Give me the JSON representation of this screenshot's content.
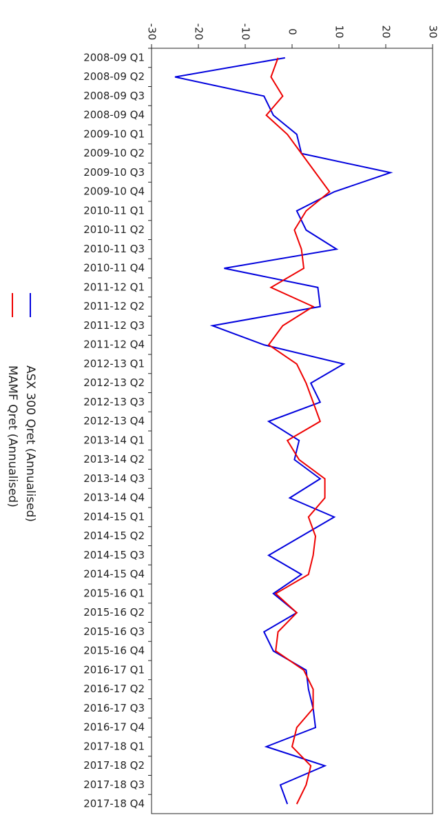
{
  "chart_data": {
    "type": "line",
    "orientation": "horizontal",
    "categories": [
      "2008-09 Q1",
      "2008-09 Q2",
      "2008-09 Q3",
      "2008-09 Q4",
      "2009-10 Q1",
      "2009-10 Q2",
      "2009-10 Q3",
      "2009-10 Q4",
      "2010-11 Q1",
      "2010-11 Q2",
      "2010-11 Q3",
      "2010-11 Q4",
      "2011-12 Q1",
      "2011-12 Q2",
      "2011-12 Q3",
      "2011-12 Q4",
      "2012-13 Q1",
      "2012-13 Q2",
      "2012-13 Q3",
      "2012-13 Q4",
      "2013-14 Q1",
      "2013-14 Q2",
      "2013-14 Q3",
      "2013-14 Q4",
      "2014-15 Q1",
      "2014-15 Q2",
      "2014-15 Q3",
      "2014-15 Q4",
      "2015-16 Q1",
      "2015-16 Q2",
      "2015-16 Q3",
      "2015-16 Q4",
      "2016-17 Q1",
      "2016-17 Q2",
      "2016-17 Q3",
      "2016-17 Q4",
      "2017-18 Q1",
      "2017-18 Q2",
      "2017-18 Q3",
      "2017-18 Q4"
    ],
    "series": [
      {
        "name": "ASX 300 Qret (Annualised)",
        "color": "#0000dd",
        "values": [
          -1.5,
          -25,
          -6,
          -4,
          1,
          2,
          21,
          9,
          1,
          3,
          9.5,
          -14.5,
          5.5,
          6,
          -17,
          -6,
          11,
          4,
          6,
          -5,
          1.5,
          0.5,
          6,
          -0.5,
          9,
          2,
          -5,
          2,
          -4,
          1,
          -6,
          -4,
          3,
          3.5,
          4.5,
          5,
          -5.5,
          7,
          -2.5,
          -1
        ]
      },
      {
        "name": "MAMF Qret (Annualised)",
        "color": "#ee0000",
        "values": [
          -3,
          -4.5,
          -2,
          -5.5,
          -1,
          2,
          5,
          8,
          3,
          0.5,
          2,
          2.5,
          -4.5,
          4.5,
          -2,
          -5,
          1,
          3,
          4.5,
          6,
          -1,
          1.5,
          7,
          7,
          3.5,
          5,
          4.5,
          3.5,
          -3.5,
          1,
          -3,
          -3.5,
          2.5,
          4.5,
          4.5,
          1,
          0,
          4,
          3,
          1
        ]
      }
    ],
    "xlim": [
      -30,
      30
    ],
    "xticks": [
      -30,
      -20,
      -10,
      0,
      10,
      20,
      30
    ]
  }
}
